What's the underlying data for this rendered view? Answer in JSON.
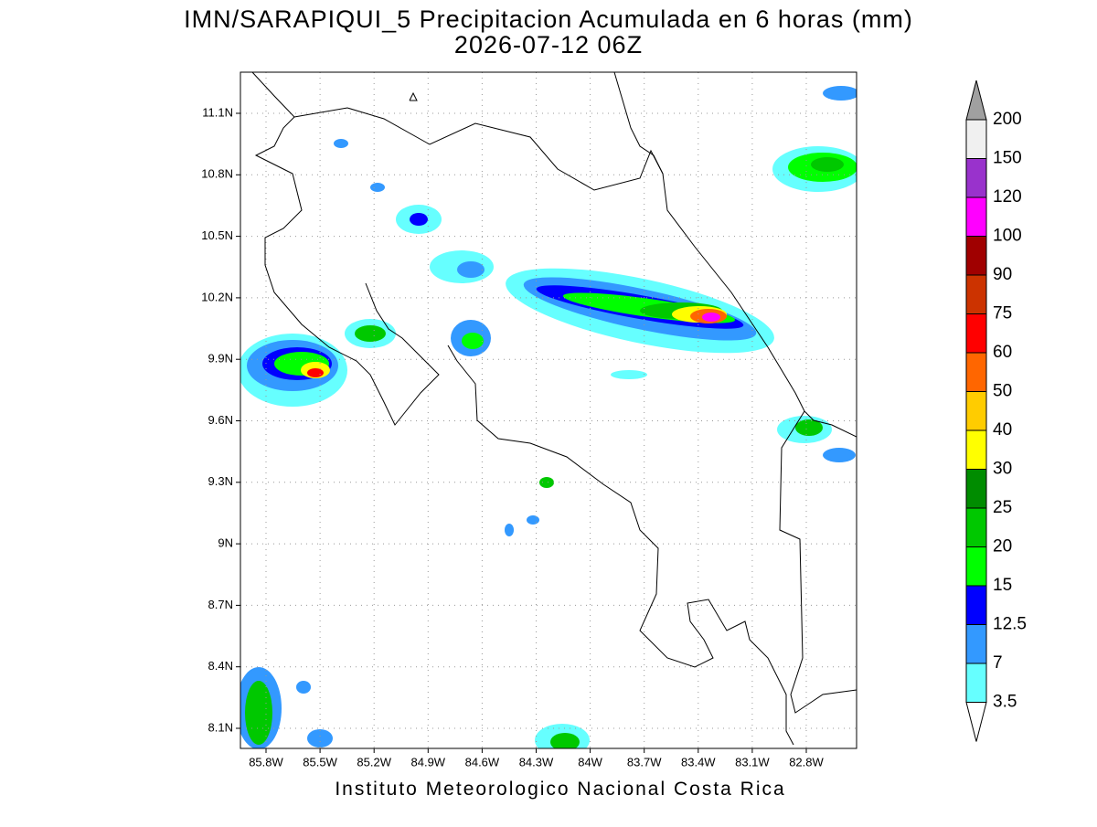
{
  "header": {
    "title": "IMN/SARAPIQUI_5 Precipitacion Acumulada en 6 horas (mm)",
    "subtitle": "2026-07-12 06Z"
  },
  "map": {
    "lat_labels": [
      "11.1N",
      "10.8N",
      "10.5N",
      "10.2N",
      "9.9N",
      "9.6N",
      "9.3N",
      "9N",
      "8.7N",
      "8.4N",
      "8.1N"
    ],
    "lon_labels": [
      "85.8W",
      "85.5W",
      "85.2W",
      "84.9W",
      "84.6W",
      "84.3W",
      "84W",
      "83.7W",
      "83.4W",
      "83.1W",
      "82.8W"
    ]
  },
  "colorbar": {
    "labels": [
      "200",
      "150",
      "120",
      "100",
      "90",
      "75",
      "60",
      "50",
      "40",
      "30",
      "25",
      "20",
      "15",
      "12.5",
      "7",
      "3.5"
    ],
    "colors": [
      "#a0a0a0",
      "#f0f0f0",
      "#9932cc",
      "#ff00ff",
      "#a00000",
      "#cc3300",
      "#ff0000",
      "#ff6600",
      "#ffcc00",
      "#ffff00",
      "#008c00",
      "#00c800",
      "#00ff00",
      "#0000ff",
      "#3399ff",
      "#66ffff",
      "#ffffff"
    ]
  },
  "footer": "Instituto Meteorologico Nacional Costa Rica"
}
